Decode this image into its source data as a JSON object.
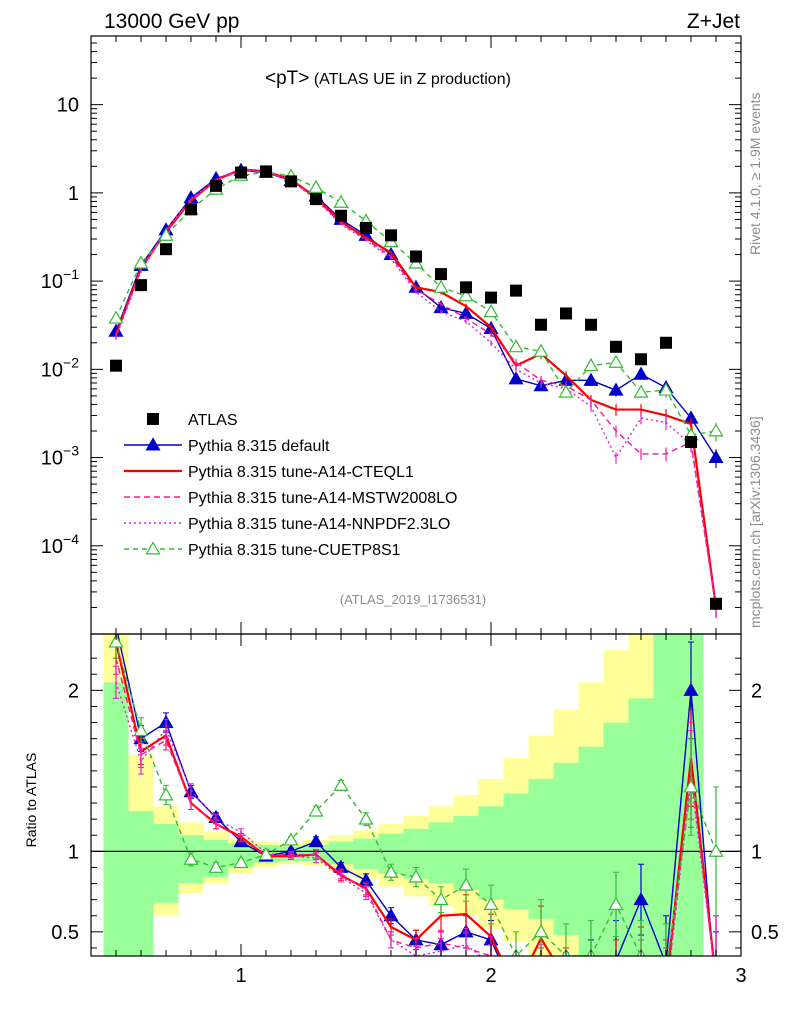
{
  "header": {
    "energy_label": "13000 GeV pp",
    "process_label": "Z+Jet",
    "title": "<pT>",
    "title_suffix": " (ATLAS UE in Z production)",
    "side_label_top": "Rivet 4.1.0, ≥ 1.9M events",
    "side_label_bottom": "mcplots.cern.ch [arXiv:1306.3436]",
    "analysis_id": "(ATLAS_2019_I1736531)",
    "ratio_ylabel": "Ratio to ATLAS"
  },
  "chart_data": {
    "type": "line",
    "main": {
      "yscale": "log",
      "ylim": [
        1e-05,
        60
      ],
      "xlim": [
        0.4,
        3.0
      ],
      "ytick_labels": [
        "10",
        "1",
        "10^-1",
        "10^-2",
        "10^-3",
        "10^-4"
      ],
      "ytick_values": [
        10,
        1,
        0.1,
        0.01,
        0.001,
        0.0001
      ]
    },
    "ratio": {
      "ylim": [
        0.35,
        2.35
      ],
      "ytick_labels": [
        "2",
        "1",
        "0.5"
      ],
      "ytick_values": [
        2,
        1,
        0.5
      ],
      "xtick_labels": [
        "1",
        "2",
        "3"
      ],
      "xtick_values": [
        1,
        2,
        3
      ]
    },
    "x": [
      0.5,
      0.6,
      0.7,
      0.8,
      0.9,
      1.0,
      1.1,
      1.2,
      1.3,
      1.4,
      1.5,
      1.6,
      1.7,
      1.8,
      1.9,
      2.0,
      2.1,
      2.2,
      2.3,
      2.4,
      2.5,
      2.6,
      2.7,
      2.8,
      2.9
    ],
    "band_edges": [
      0.45,
      0.55,
      0.65,
      0.75,
      0.85,
      0.95,
      1.05,
      1.15,
      1.25,
      1.35,
      1.45,
      1.55,
      1.65,
      1.75,
      1.85,
      1.95,
      2.05,
      2.15,
      2.25,
      2.35,
      2.45,
      2.55,
      2.65,
      2.75,
      2.85
    ],
    "band_green": [
      [
        0.35,
        2.05
      ],
      [
        0.35,
        1.25
      ],
      [
        0.68,
        1.17
      ],
      [
        0.8,
        1.1
      ],
      [
        0.84,
        1.07
      ],
      [
        0.9,
        1.05
      ],
      [
        0.93,
        1.04
      ],
      [
        0.94,
        1.03
      ],
      [
        0.94,
        1.04
      ],
      [
        0.92,
        1.06
      ],
      [
        0.89,
        1.08
      ],
      [
        0.86,
        1.11
      ],
      [
        0.83,
        1.14
      ],
      [
        0.8,
        1.18
      ],
      [
        0.76,
        1.22
      ],
      [
        0.7,
        1.28
      ],
      [
        0.64,
        1.36
      ],
      [
        0.58,
        1.45
      ],
      [
        0.48,
        1.55
      ],
      [
        0.35,
        1.65
      ],
      [
        0.35,
        1.8
      ],
      [
        0.35,
        1.95
      ],
      [
        0.35,
        2.35
      ],
      [
        0.35,
        2.35
      ]
    ],
    "band_yellow": [
      [
        0.35,
        2.35
      ],
      [
        0.35,
        1.6
      ],
      [
        0.6,
        1.28
      ],
      [
        0.74,
        1.18
      ],
      [
        0.8,
        1.12
      ],
      [
        0.86,
        1.08
      ],
      [
        0.9,
        1.06
      ],
      [
        0.92,
        1.05
      ],
      [
        0.91,
        1.07
      ],
      [
        0.87,
        1.1
      ],
      [
        0.83,
        1.13
      ],
      [
        0.78,
        1.17
      ],
      [
        0.72,
        1.22
      ],
      [
        0.66,
        1.28
      ],
      [
        0.6,
        1.35
      ],
      [
        0.52,
        1.45
      ],
      [
        0.44,
        1.58
      ],
      [
        0.35,
        1.72
      ],
      [
        0.35,
        1.88
      ],
      [
        0.35,
        2.05
      ],
      [
        0.35,
        2.25
      ],
      [
        0.35,
        2.35
      ],
      [
        0.35,
        2.35
      ],
      [
        0.35,
        2.35
      ]
    ],
    "atlas": [
      0.011,
      0.09,
      0.23,
      0.65,
      1.2,
      1.7,
      1.75,
      1.35,
      0.85,
      0.55,
      0.4,
      0.33,
      0.19,
      0.12,
      0.085,
      0.065,
      0.078,
      0.032,
      0.043,
      0.032,
      0.018,
      0.013,
      0.02,
      0.0015,
      2.2e-05
    ],
    "series": [
      {
        "name": "Pythia 8.315 default",
        "color": "#0000cc",
        "dash": "",
        "marker": "triangle-filled",
        "values": [
          0.027,
          0.15,
          0.38,
          0.88,
          1.45,
          1.8,
          1.7,
          1.38,
          0.92,
          0.5,
          0.33,
          0.2,
          0.085,
          0.05,
          0.043,
          0.029,
          0.0078,
          0.0065,
          0.0075,
          0.0075,
          0.0058,
          0.0088,
          0.0062,
          0.0028,
          0.001
        ],
        "ratio": [
          2.4,
          1.7,
          1.8,
          1.37,
          1.21,
          1.06,
          0.97,
          1.0,
          1.06,
          0.9,
          0.82,
          0.6,
          0.45,
          0.42,
          0.5,
          0.45,
          0.1,
          0.2,
          0.17,
          0.23,
          0.32,
          0.7,
          0.3,
          2.0,
          0.1
        ],
        "ratio_err": [
          0.1,
          0.08,
          0.06,
          0.04,
          0.03,
          0.02,
          0.02,
          0.02,
          0.03,
          0.03,
          0.04,
          0.05,
          0.06,
          0.08,
          0.1,
          0.12,
          0.15,
          0.2,
          0.2,
          0.22,
          0.25,
          0.22,
          0.3,
          0.3,
          0.4
        ]
      },
      {
        "name": "Pythia 8.315 tune-A14-CTEQL1",
        "color": "#ff0000",
        "dash": "",
        "marker": "none",
        "values": [
          0.025,
          0.14,
          0.36,
          0.82,
          1.4,
          1.85,
          1.75,
          1.42,
          0.88,
          0.47,
          0.31,
          0.21,
          0.085,
          0.075,
          0.052,
          0.03,
          0.011,
          0.015,
          0.0085,
          0.0045,
          0.0035,
          0.0035,
          0.003,
          0.0024,
          2e-05
        ],
        "ratio": [
          2.3,
          1.62,
          1.72,
          1.3,
          1.17,
          1.09,
          0.97,
          0.97,
          0.98,
          0.85,
          0.77,
          0.53,
          0.45,
          0.6,
          0.61,
          0.47,
          0.14,
          0.46,
          0.2,
          0.14,
          0.2,
          0.28,
          0.15,
          1.58,
          0.2
        ],
        "ratio_err": [
          0.1,
          0.08,
          0.06,
          0.04,
          0.03,
          0.02,
          0.02,
          0.02,
          0.03,
          0.03,
          0.04,
          0.05,
          0.06,
          0.1,
          0.12,
          0.14,
          0.15,
          0.2,
          0.2,
          0.22,
          0.25,
          0.25,
          0.3,
          0.3,
          0.4
        ]
      },
      {
        "name": "Pythia 8.315 tune-A14-MSTW2008LO",
        "color": "#ff1493",
        "dash": "6,4",
        "marker": "none",
        "values": [
          0.024,
          0.14,
          0.37,
          0.83,
          1.38,
          1.82,
          1.72,
          1.4,
          0.86,
          0.45,
          0.3,
          0.19,
          0.08,
          0.055,
          0.038,
          0.025,
          0.012,
          0.0075,
          0.0065,
          0.0045,
          0.002,
          0.0011,
          0.0011,
          0.0015,
          2e-05
        ],
        "ratio": [
          2.2,
          1.6,
          1.69,
          1.3,
          1.17,
          1.08,
          0.98,
          0.98,
          0.98,
          0.86,
          0.76,
          0.45,
          0.4,
          0.43,
          0.4,
          0.35,
          0.15,
          0.2,
          0.15,
          0.1,
          0.1,
          0.08,
          0.1,
          1.5,
          0.2
        ],
        "ratio_err": [
          0.1,
          0.08,
          0.06,
          0.04,
          0.03,
          0.02,
          0.02,
          0.02,
          0.03,
          0.03,
          0.04,
          0.05,
          0.06,
          0.08,
          0.1,
          0.12,
          0.15,
          0.2,
          0.2,
          0.22,
          0.25,
          0.25,
          0.3,
          0.3,
          0.4
        ]
      },
      {
        "name": "Pythia 8.315 tune-A14-NNPDF2.3LO",
        "color": "#e020d0",
        "dash": "2,3",
        "marker": "none",
        "values": [
          0.023,
          0.13,
          0.38,
          0.86,
          1.4,
          1.88,
          1.72,
          1.38,
          0.84,
          0.44,
          0.29,
          0.18,
          0.075,
          0.045,
          0.035,
          0.02,
          0.01,
          0.007,
          0.006,
          0.0038,
          0.001,
          0.0028,
          0.0025,
          0.0014,
          2e-05
        ],
        "ratio": [
          2.05,
          1.56,
          1.76,
          1.38,
          1.2,
          1.12,
          0.99,
          0.97,
          0.96,
          0.84,
          0.74,
          0.45,
          0.35,
          0.38,
          0.42,
          0.3,
          0.15,
          0.22,
          0.14,
          0.12,
          0.05,
          0.2,
          0.1,
          1.45,
          0.2
        ],
        "ratio_err": [
          0.1,
          0.08,
          0.06,
          0.04,
          0.03,
          0.02,
          0.02,
          0.02,
          0.03,
          0.03,
          0.04,
          0.05,
          0.06,
          0.08,
          0.1,
          0.12,
          0.15,
          0.2,
          0.2,
          0.22,
          0.25,
          0.25,
          0.3,
          0.3,
          0.4
        ]
      },
      {
        "name": "Pythia 8.315 tune-CUETP8S1",
        "color": "#33bb33",
        "dash": "5,4",
        "marker": "triangle-open",
        "values": [
          0.038,
          0.16,
          0.33,
          0.65,
          1.1,
          1.58,
          1.72,
          1.55,
          1.15,
          0.78,
          0.48,
          0.28,
          0.16,
          0.085,
          0.068,
          0.045,
          0.018,
          0.016,
          0.0055,
          0.011,
          0.012,
          0.0055,
          0.0058,
          0.0018,
          0.002
        ],
        "ratio": [
          2.3,
          1.75,
          1.35,
          0.95,
          0.9,
          0.93,
          0.98,
          1.07,
          1.25,
          1.41,
          1.2,
          0.87,
          0.84,
          0.7,
          0.79,
          0.67,
          0.35,
          0.5,
          0.35,
          0.35,
          0.67,
          0.35,
          0.25,
          1.4,
          1.0
        ],
        "ratio_err": [
          0.1,
          0.08,
          0.06,
          0.04,
          0.03,
          0.02,
          0.02,
          0.02,
          0.03,
          0.03,
          0.04,
          0.05,
          0.06,
          0.08,
          0.1,
          0.12,
          0.15,
          0.2,
          0.2,
          0.22,
          0.2,
          0.22,
          0.3,
          0.3,
          0.4
        ]
      }
    ],
    "legend": {
      "placement": "bottom-left",
      "entries": [
        "ATLAS",
        "Pythia 8.315 default",
        "Pythia 8.315 tune-A14-CTEQL1",
        "Pythia 8.315 tune-A14-MSTW2008LO",
        "Pythia 8.315 tune-A14-NNPDF2.3LO",
        "Pythia 8.315 tune-CUETP8S1"
      ]
    }
  }
}
